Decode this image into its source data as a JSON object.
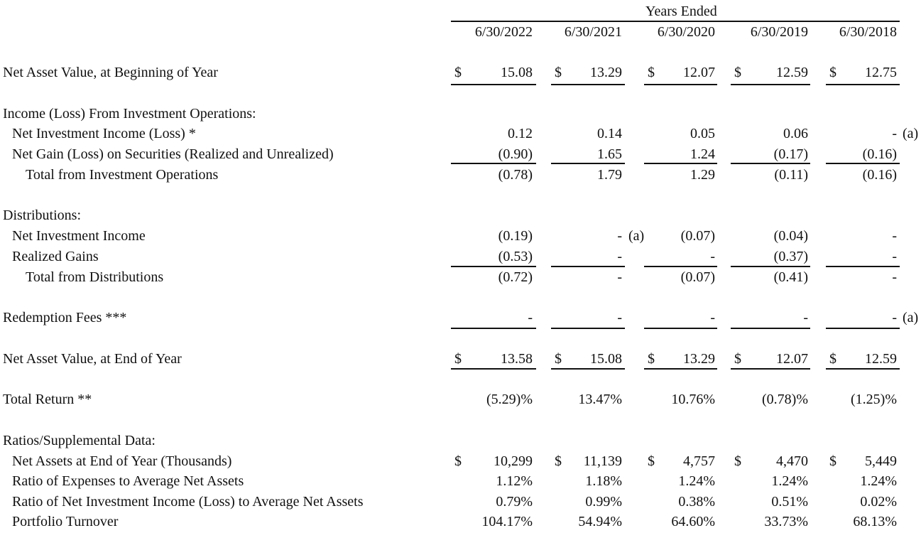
{
  "header": {
    "group_title": "Years Ended",
    "years": [
      "6/30/2022",
      "6/30/2021",
      "6/30/2020",
      "6/30/2019",
      "6/30/2018"
    ]
  },
  "dollar_sign": "$",
  "note_a": "(a)",
  "rows": {
    "nav_begin": {
      "label": "Net Asset Value, at Beginning of Year",
      "values": [
        "15.08",
        "13.29",
        "12.07",
        "12.59",
        "12.75"
      ]
    },
    "income_heading": {
      "label": "Income (Loss) From Investment Operations:"
    },
    "nii": {
      "label": "Net Investment Income (Loss) *",
      "values": [
        "0.12",
        "0.14",
        "0.05",
        "0.06",
        "-"
      ]
    },
    "net_gain": {
      "label": "Net Gain (Loss) on Securities (Realized and Unrealized)",
      "values": [
        "(0.90)",
        "1.65",
        "1.24",
        "(0.17)",
        "(0.16)"
      ]
    },
    "total_invest": {
      "label": "Total from Investment Operations",
      "values": [
        "(0.78)",
        "1.79",
        "1.29",
        "(0.11)",
        "(0.16)"
      ]
    },
    "dist_heading": {
      "label": "Distributions:"
    },
    "dist_nii": {
      "label": "Net Investment Income",
      "values": [
        "(0.19)",
        "-",
        "(0.07)",
        "(0.04)",
        "-"
      ]
    },
    "realized_gains": {
      "label": "Realized Gains",
      "values": [
        "(0.53)",
        "-",
        "-",
        "(0.37)",
        "-"
      ]
    },
    "total_dist": {
      "label": "Total from Distributions",
      "values": [
        "(0.72)",
        "-",
        "(0.07)",
        "(0.41)",
        "-"
      ]
    },
    "redemption": {
      "label": "Redemption Fees ***",
      "values": [
        "-",
        "-",
        "-",
        "-",
        "-"
      ]
    },
    "nav_end": {
      "label": "Net Asset Value, at End of Year",
      "values": [
        "13.58",
        "15.08",
        "13.29",
        "12.07",
        "12.59"
      ]
    },
    "total_return": {
      "label": "Total Return **",
      "values": [
        "(5.29)%",
        "13.47%",
        "10.76%",
        "(0.78)%",
        "(1.25)%"
      ]
    },
    "ratios_heading": {
      "label": "Ratios/Supplemental Data:"
    },
    "net_assets": {
      "label": "Net Assets at End of Year (Thousands)",
      "values": [
        "10,299",
        "11,139",
        "4,757",
        "4,470",
        "5,449"
      ]
    },
    "expense_ratio": {
      "label": "Ratio of Expenses to Average Net Assets",
      "values": [
        "1.12%",
        "1.18%",
        "1.24%",
        "1.24%",
        "1.24%"
      ]
    },
    "nii_ratio": {
      "label": "Ratio of Net Investment Income (Loss) to Average Net Assets",
      "values": [
        "0.79%",
        "0.99%",
        "0.38%",
        "0.51%",
        "0.02%"
      ]
    },
    "turnover": {
      "label": "Portfolio Turnover",
      "values": [
        "104.17%",
        "54.94%",
        "64.60%",
        "33.73%",
        "68.13%"
      ]
    }
  }
}
